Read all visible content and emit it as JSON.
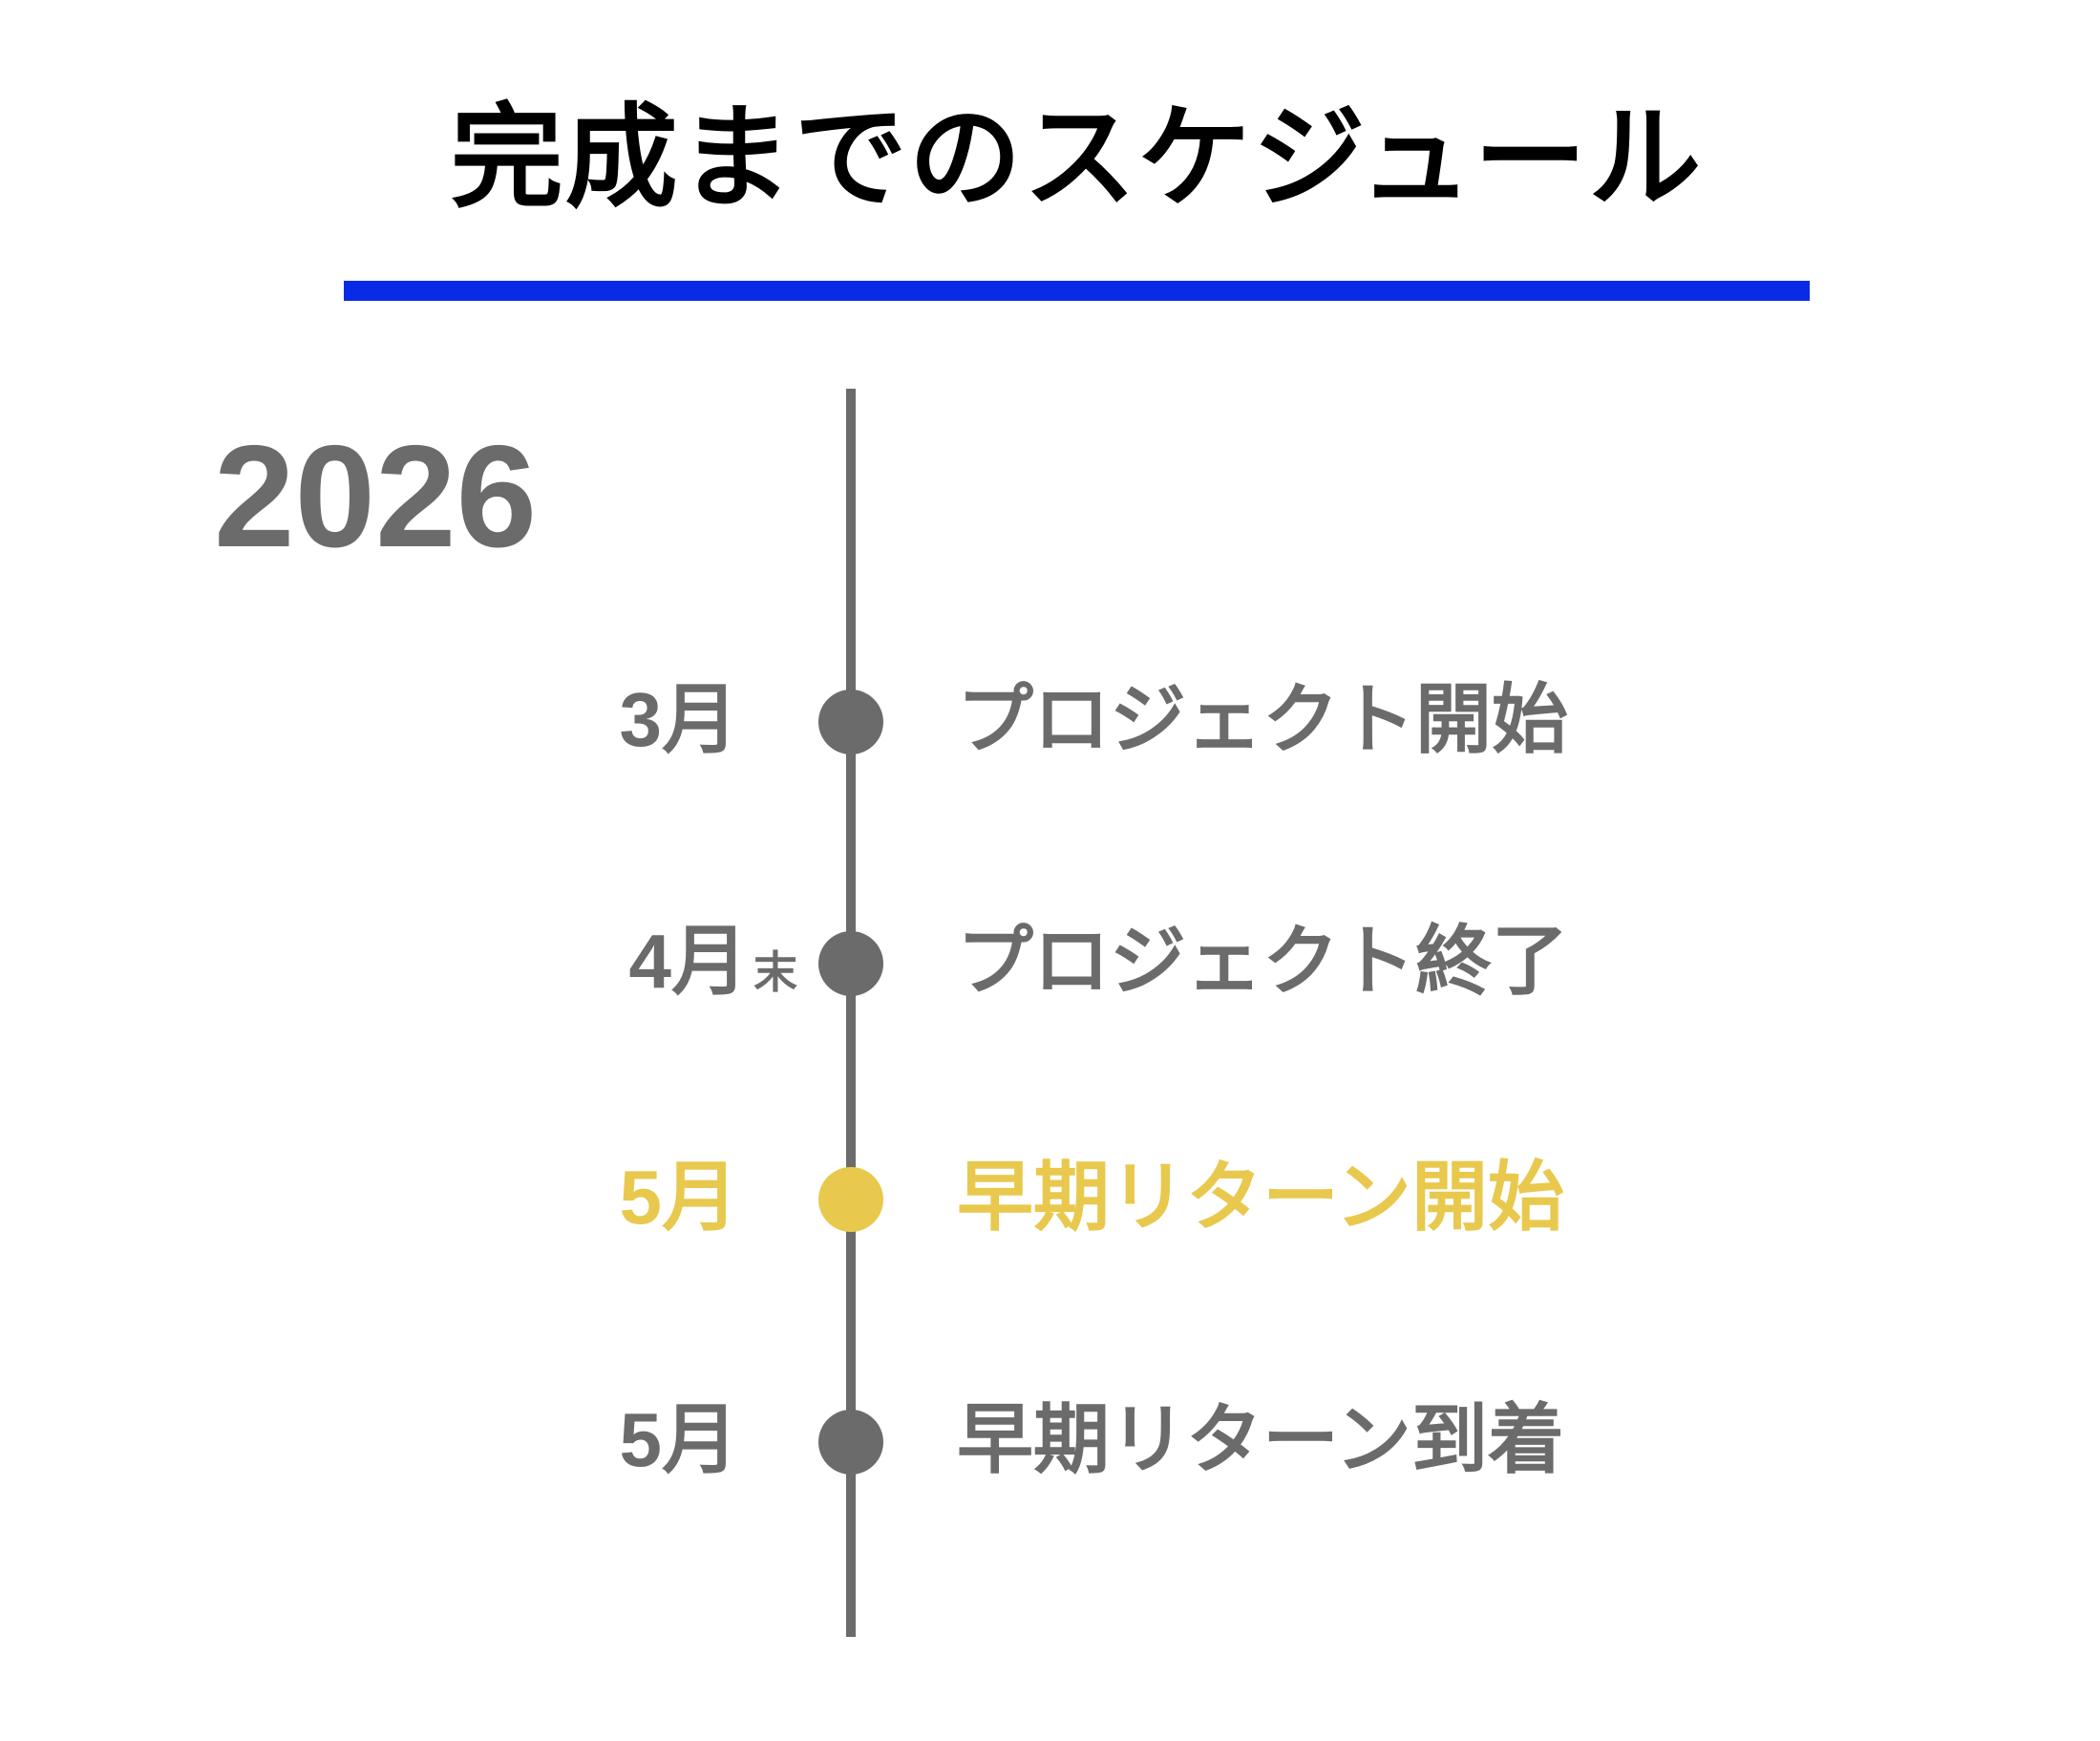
{
  "title": "完成までのスケジュール",
  "year": "2026",
  "colors": {
    "accent_rule": "#0a2be6",
    "timeline": "#6b6b6b",
    "highlight": "#e8c94d"
  },
  "events": [
    {
      "month": "3月",
      "suffix": "",
      "label": "プロジェクト開始",
      "highlight": false
    },
    {
      "month": "4月",
      "suffix": "末",
      "label": "プロジェクト終了",
      "highlight": false
    },
    {
      "month": "5月",
      "suffix": "",
      "label": "早期リターン開始",
      "highlight": true
    },
    {
      "month": "5月",
      "suffix": "",
      "label": "早期リターン到着",
      "highlight": false
    }
  ]
}
